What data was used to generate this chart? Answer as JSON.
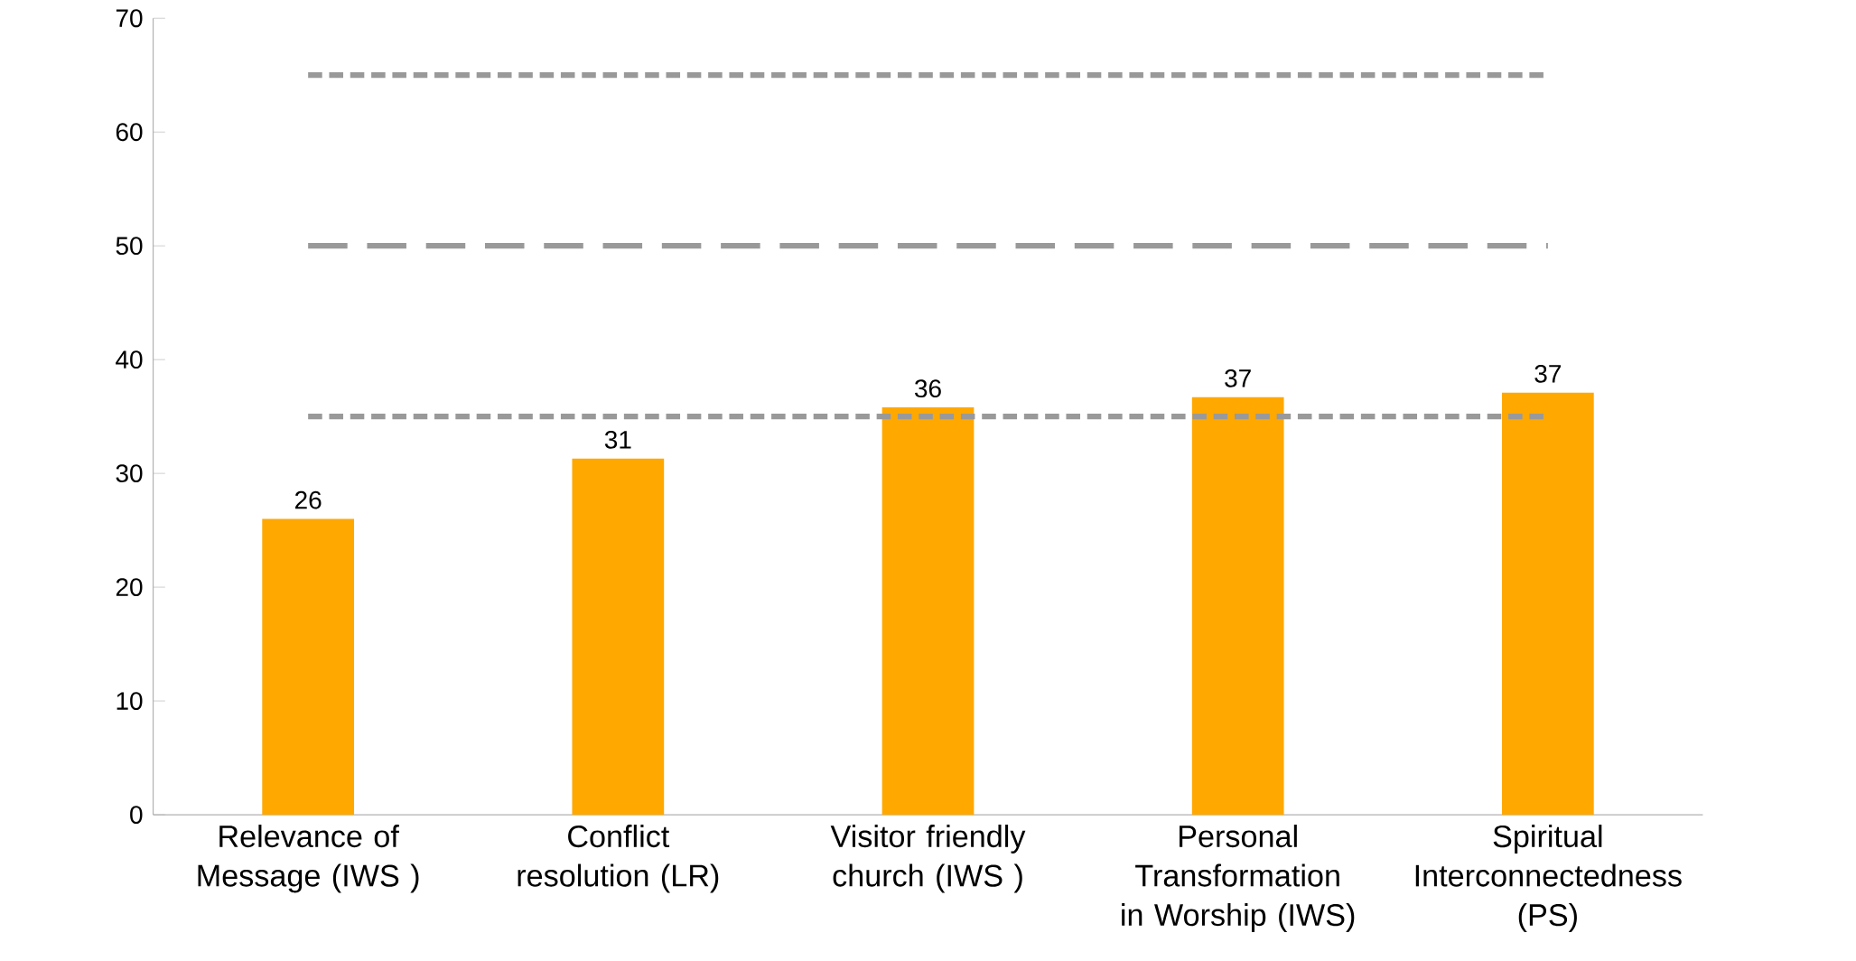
{
  "chart_data": {
    "type": "bar",
    "categories": [
      "Relevance of Message (IWS )",
      "Conflict resolution (LR)",
      "Visitor friendly church (IWS )",
      "Personal Transformation in Worship (IWS)",
      "Spiritual Interconnectedness (PS)"
    ],
    "values": [
      26,
      31.3,
      35.8,
      36.7,
      37.1
    ],
    "value_labels": [
      "26",
      "31",
      "36",
      "37",
      "37"
    ],
    "color": "#ffa800",
    "ylim": [
      0,
      70
    ],
    "yticks": [
      0,
      10,
      20,
      30,
      40,
      50,
      60,
      70
    ],
    "ref_lines": [
      {
        "axis": "y",
        "value": 65,
        "color": "#999999",
        "line_style": "dotted"
      },
      {
        "axis": "y",
        "value": 50,
        "color": "#999999",
        "line_style": "dashed"
      },
      {
        "axis": "y",
        "value": 35,
        "color": "#999999",
        "line_style": "dotted"
      }
    ],
    "grid": false
  }
}
